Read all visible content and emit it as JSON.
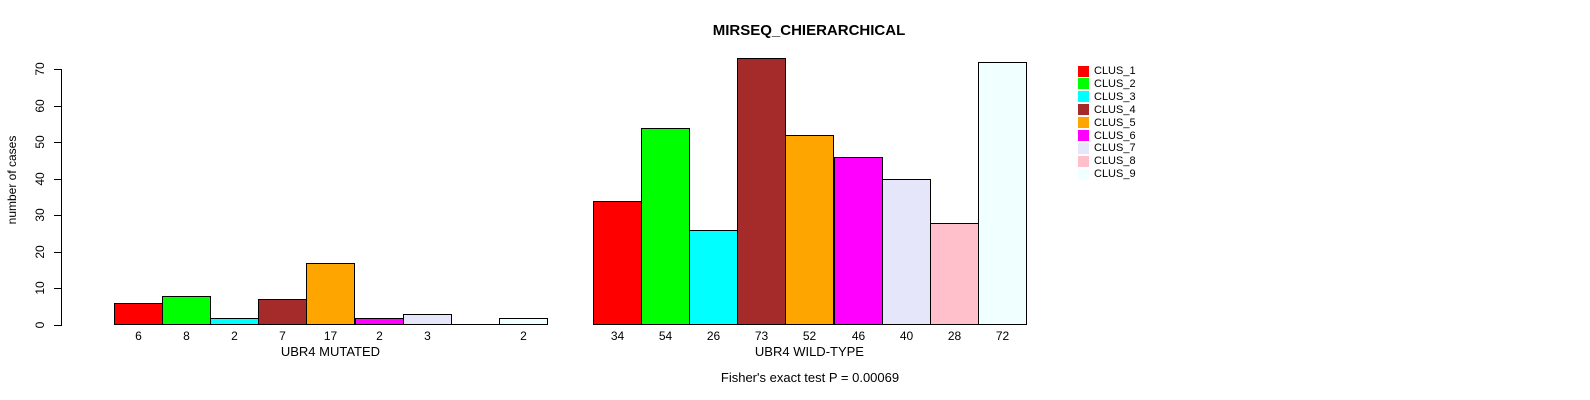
{
  "chart_data": {
    "type": "bar",
    "title": "MIRSEQ_CHIERARCHICAL",
    "ylabel": "number of cases",
    "ylim": [
      0,
      70
    ],
    "yticks": [
      0,
      10,
      20,
      30,
      40,
      50,
      60,
      70
    ],
    "grid": false,
    "footnote": "Fisher's exact test P = 0.00069",
    "categories": [
      "UBR4 MUTATED",
      "UBR4 WILD-TYPE"
    ],
    "groups": [
      {
        "label": "UBR4 MUTATED",
        "values": [
          6,
          8,
          2,
          7,
          17,
          2,
          3,
          0,
          2
        ]
      },
      {
        "label": "UBR4 WILD-TYPE",
        "values": [
          34,
          54,
          26,
          73,
          52,
          46,
          40,
          28,
          72
        ]
      }
    ],
    "legend": {
      "position": "top-right",
      "entries": [
        {
          "name": "CLUS_1",
          "color": "#FF0000"
        },
        {
          "name": "CLUS_2",
          "color": "#00FF00"
        },
        {
          "name": "CLUS_3",
          "color": "#00FFFF"
        },
        {
          "name": "CLUS_4",
          "color": "#A52A2A"
        },
        {
          "name": "CLUS_5",
          "color": "#FFA500"
        },
        {
          "name": "CLUS_6",
          "color": "#FF00FF"
        },
        {
          "name": "CLUS_7",
          "color": "#E6E6FA"
        },
        {
          "name": "CLUS_8",
          "color": "#FFC0CB"
        },
        {
          "name": "CLUS_9",
          "color": "#F0FFFF"
        }
      ]
    },
    "axis_color": "#000000",
    "background_color": "#FFFFFF"
  }
}
